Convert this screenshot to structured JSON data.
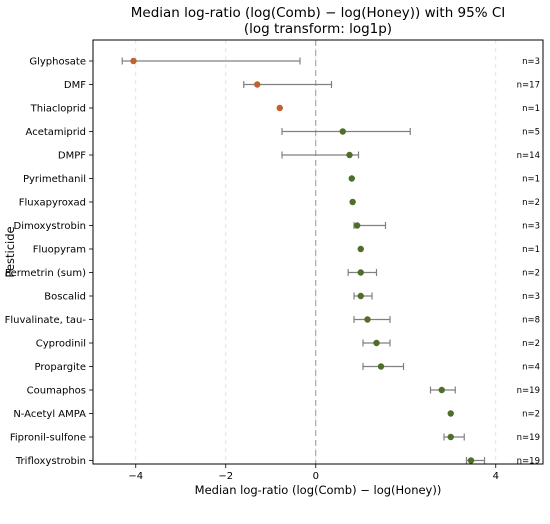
{
  "chart_data": {
    "type": "scatter",
    "title": "Median log-ratio (log(Comb) − log(Honey)) with 95% CI",
    "subtitle": "(log transform: log1p)",
    "xlabel": "Median log-ratio (log(Comb) − log(Honey))",
    "ylabel": "Pesticide",
    "xlim": [
      -4.95,
      5.05
    ],
    "xticks": [
      -4,
      -2,
      0,
      4
    ],
    "xtick_labels": [
      "−4",
      "−2",
      "0",
      "4"
    ],
    "grid": "vertical dashed",
    "reference_line": 0,
    "colors": {
      "negative": "#c0622f",
      "positive": "#4d6f2a",
      "whisker": "#808080",
      "zero_line": "#999999"
    },
    "points": [
      {
        "label": "Glyphosate",
        "median": -4.05,
        "ci_low": -4.3,
        "ci_high": -0.35,
        "n": "n=3"
      },
      {
        "label": "DMF",
        "median": -1.3,
        "ci_low": -1.6,
        "ci_high": 0.35,
        "n": "n=17"
      },
      {
        "label": "Thiacloprid",
        "median": -0.8,
        "ci_low": null,
        "ci_high": null,
        "n": "n=1"
      },
      {
        "label": "Acetamiprid",
        "median": 0.6,
        "ci_low": -0.75,
        "ci_high": 2.1,
        "n": "n=5"
      },
      {
        "label": "DMPF",
        "median": 0.75,
        "ci_low": -0.75,
        "ci_high": 0.95,
        "n": "n=14"
      },
      {
        "label": "Pyrimethanil",
        "median": 0.8,
        "ci_low": null,
        "ci_high": null,
        "n": "n=1"
      },
      {
        "label": "Fluxapyroxad",
        "median": 0.82,
        "ci_low": null,
        "ci_high": null,
        "n": "n=2"
      },
      {
        "label": "Dimoxystrobin",
        "median": 0.92,
        "ci_low": 0.85,
        "ci_high": 1.55,
        "n": "n=3"
      },
      {
        "label": "Fluopyram",
        "median": 1.0,
        "ci_low": null,
        "ci_high": null,
        "n": "n=1"
      },
      {
        "label": "Permetrin (sum)",
        "median": 1.0,
        "ci_low": 0.72,
        "ci_high": 1.35,
        "n": "n=2"
      },
      {
        "label": "Boscalid",
        "median": 1.0,
        "ci_low": 0.85,
        "ci_high": 1.25,
        "n": "n=3"
      },
      {
        "label": "Fluvalinate, tau-",
        "median": 1.15,
        "ci_low": 0.85,
        "ci_high": 1.65,
        "n": "n=8"
      },
      {
        "label": "Cyprodinil",
        "median": 1.35,
        "ci_low": 1.05,
        "ci_high": 1.65,
        "n": "n=2"
      },
      {
        "label": "Propargite",
        "median": 1.45,
        "ci_low": 1.05,
        "ci_high": 1.95,
        "n": "n=4"
      },
      {
        "label": "Coumaphos",
        "median": 2.8,
        "ci_low": 2.55,
        "ci_high": 3.1,
        "n": "n=19"
      },
      {
        "label": "N-Acetyl AMPA",
        "median": 3.0,
        "ci_low": null,
        "ci_high": null,
        "n": "n=2"
      },
      {
        "label": "Fipronil-sulfone",
        "median": 3.0,
        "ci_low": 2.85,
        "ci_high": 3.3,
        "n": "n=19"
      },
      {
        "label": "Trifloxystrobin",
        "median": 3.45,
        "ci_low": 3.35,
        "ci_high": 3.75,
        "n": "n=19"
      }
    ]
  }
}
